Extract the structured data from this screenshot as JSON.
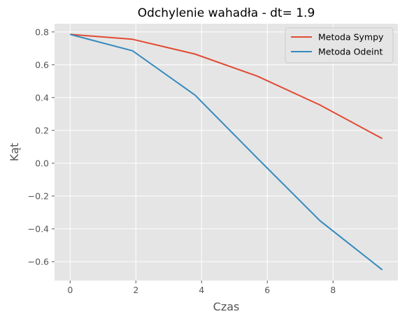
{
  "chart_data": {
    "type": "line",
    "title": "Odchylenie wahadła - dt= 1.9",
    "xlabel": "Czas",
    "ylabel": "Kąt",
    "xlim": [
      -0.475,
      9.975
    ],
    "ylim": [
      -0.715,
      0.85
    ],
    "xticks": [
      0,
      2,
      4,
      6,
      8
    ],
    "xtick_labels": [
      "0",
      "2",
      "4",
      "6",
      "8"
    ],
    "yticks": [
      -0.6,
      -0.4,
      -0.2,
      0.0,
      0.2,
      0.4,
      0.6,
      0.8
    ],
    "ytick_labels": [
      "−0.6",
      "−0.4",
      "−0.2",
      "0.0",
      "0.2",
      "0.4",
      "0.6",
      "0.8"
    ],
    "grid": true,
    "legend_position": "top-right",
    "style": "ggplot",
    "colors": {
      "plot_background": "#e5e5e5",
      "grid": "#ffffff",
      "series_1": "#e24a33",
      "series_2": "#348abd"
    },
    "x": [
      0,
      1.9,
      3.8,
      5.7,
      7.6,
      9.5
    ],
    "series": [
      {
        "name": "Metoda Sympy",
        "color": "#e24a33",
        "values": [
          0.785,
          0.755,
          0.665,
          0.53,
          0.355,
          0.15
        ]
      },
      {
        "name": "Metoda Odeint",
        "color": "#348abd",
        "values": [
          0.785,
          0.685,
          0.415,
          0.03,
          -0.35,
          -0.65
        ]
      }
    ]
  }
}
